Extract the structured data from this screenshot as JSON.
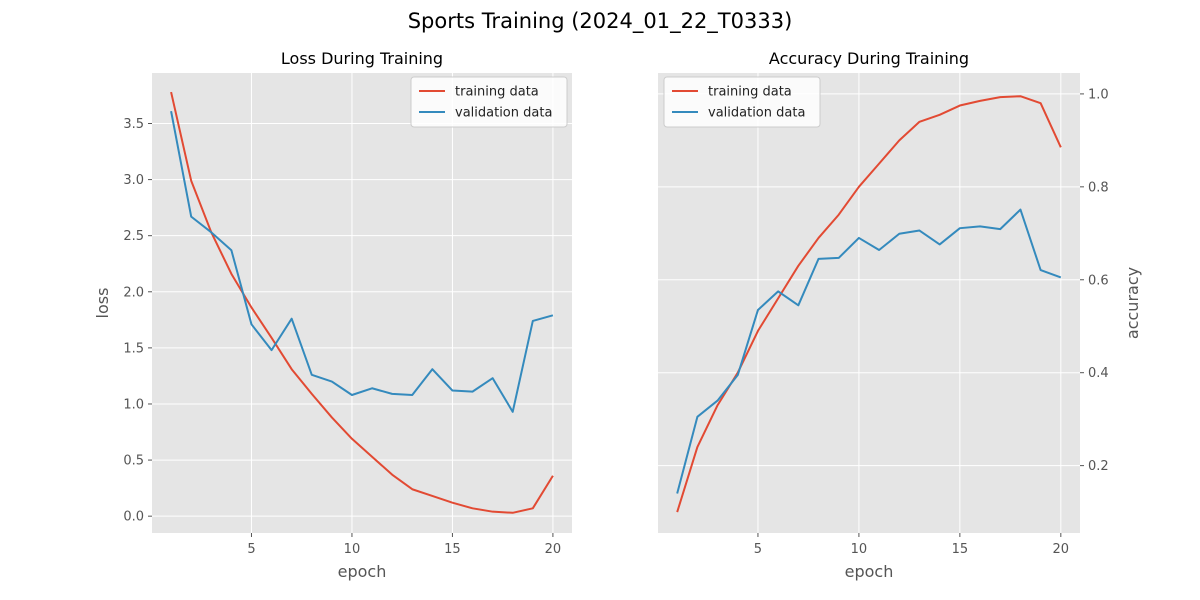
{
  "figure": {
    "title": "Sports Training (2024_01_22_T0333)"
  },
  "colors": {
    "training": "#E24A33",
    "validation": "#348ABD",
    "plot_bg": "#E5E5E5",
    "grid": "#FFFFFF",
    "tick_text": "#555555"
  },
  "chart_data": [
    {
      "type": "line",
      "title": "Loss During Training",
      "xlabel": "epoch",
      "ylabel": "loss",
      "y_axis_side": "left",
      "xlim": [
        0.05,
        20.95
      ],
      "ylim": [
        -0.15,
        3.95
      ],
      "xticks": [
        5,
        10,
        15,
        20
      ],
      "xtick_labels": [
        "5",
        "10",
        "15",
        "20"
      ],
      "yticks": [
        0,
        0.5,
        1,
        1.5,
        2,
        2.5,
        3,
        3.5
      ],
      "ytick_labels": [
        "0.0",
        "0.5",
        "1.0",
        "1.5",
        "2.0",
        "2.5",
        "3.0",
        "3.5"
      ],
      "grid": true,
      "legend": "upper right",
      "x": [
        1,
        2,
        3,
        4,
        5,
        6,
        7,
        8,
        9,
        10,
        11,
        12,
        13,
        14,
        15,
        16,
        17,
        18,
        19,
        20
      ],
      "series": [
        {
          "name": "training data",
          "values": [
            3.78,
            2.99,
            2.53,
            2.16,
            1.86,
            1.59,
            1.31,
            1.09,
            0.88,
            0.69,
            0.53,
            0.37,
            0.24,
            0.18,
            0.12,
            0.07,
            0.04,
            0.03,
            0.07,
            0.36
          ]
        },
        {
          "name": "validation data",
          "values": [
            3.61,
            2.67,
            2.53,
            2.37,
            1.71,
            1.48,
            1.76,
            1.26,
            1.2,
            1.08,
            1.14,
            1.09,
            1.08,
            1.31,
            1.12,
            1.11,
            1.23,
            0.93,
            1.74,
            1.79
          ]
        }
      ]
    },
    {
      "type": "line",
      "title": "Accuracy During Training",
      "xlabel": "epoch",
      "ylabel": "accuracy",
      "y_axis_side": "right",
      "xlim": [
        0.05,
        20.95
      ],
      "ylim": [
        0.055,
        1.045
      ],
      "xticks": [
        5,
        10,
        15,
        20
      ],
      "xtick_labels": [
        "5",
        "10",
        "15",
        "20"
      ],
      "yticks": [
        0.2,
        0.4,
        0.6,
        0.8,
        1.0
      ],
      "ytick_labels": [
        "0.2",
        "0.4",
        "0.6",
        "0.8",
        "1.0"
      ],
      "grid": true,
      "legend": "upper left",
      "x": [
        1,
        2,
        3,
        4,
        5,
        6,
        7,
        8,
        9,
        10,
        11,
        12,
        13,
        14,
        15,
        16,
        17,
        18,
        19,
        20
      ],
      "series": [
        {
          "name": "training data",
          "values": [
            0.1,
            0.24,
            0.33,
            0.4,
            0.49,
            0.56,
            0.63,
            0.69,
            0.74,
            0.8,
            0.85,
            0.9,
            0.94,
            0.955,
            0.975,
            0.985,
            0.993,
            0.995,
            0.98,
            0.885
          ]
        },
        {
          "name": "validation data",
          "values": [
            0.14,
            0.305,
            0.34,
            0.395,
            0.535,
            0.575,
            0.545,
            0.645,
            0.647,
            0.69,
            0.664,
            0.699,
            0.706,
            0.676,
            0.711,
            0.715,
            0.709,
            0.751,
            0.621,
            0.605
          ]
        }
      ]
    }
  ]
}
